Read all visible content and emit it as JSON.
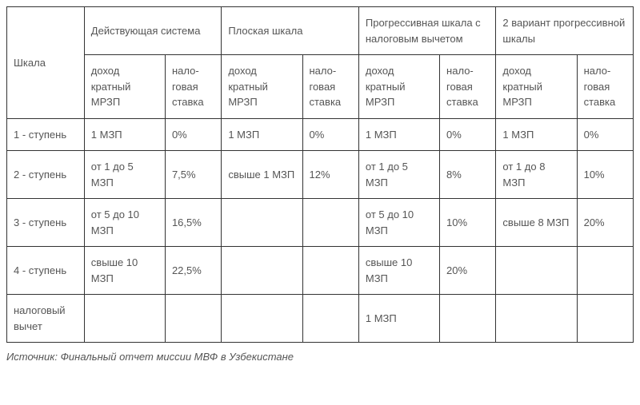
{
  "table": {
    "header_main": "Шкала",
    "systems": [
      "Действующая система",
      "Плоская шкала",
      "Прогрессивная шкала с налоговым вычетом",
      "2 вариант прогрессивной шкалы"
    ],
    "subheader_income": "доход кратный МРЗП",
    "subheader_rate": "нало-говая ставка",
    "rows": [
      {
        "label": "1 - ступень",
        "cells": [
          "1 МЗП",
          "0%",
          "1 МЗП",
          "0%",
          "1 МЗП",
          "0%",
          "1 МЗП",
          "0%"
        ]
      },
      {
        "label": "2 - ступень",
        "cells": [
          "от 1 до 5 МЗП",
          "7,5%",
          "свыше 1 МЗП",
          "12%",
          "от 1 до 5 МЗП",
          "8%",
          "от 1 до 8 МЗП",
          "10%"
        ]
      },
      {
        "label": "3 - ступень",
        "cells": [
          "от 5 до 10 МЗП",
          "16,5%",
          "",
          "",
          "от 5 до 10 МЗП",
          "10%",
          "свыше 8 МЗП",
          "20%"
        ]
      },
      {
        "label": "4 - ступень",
        "cells": [
          "свыше 10 МЗП",
          "22,5%",
          "",
          "",
          "свыше 10 МЗП",
          "20%",
          "",
          ""
        ]
      },
      {
        "label": "налоговый вычет",
        "cells": [
          "",
          "",
          "",
          "",
          "1 МЗП",
          "",
          "",
          ""
        ]
      }
    ]
  },
  "source_note": "Источник: Финальный отчет миссии МВФ в Узбекистане",
  "styling": {
    "border_color": "#333333",
    "text_color": "#555555",
    "background_color": "#ffffff",
    "font_size_cell": 13,
    "font_size_note": 13,
    "cell_padding": "10px 8px"
  }
}
